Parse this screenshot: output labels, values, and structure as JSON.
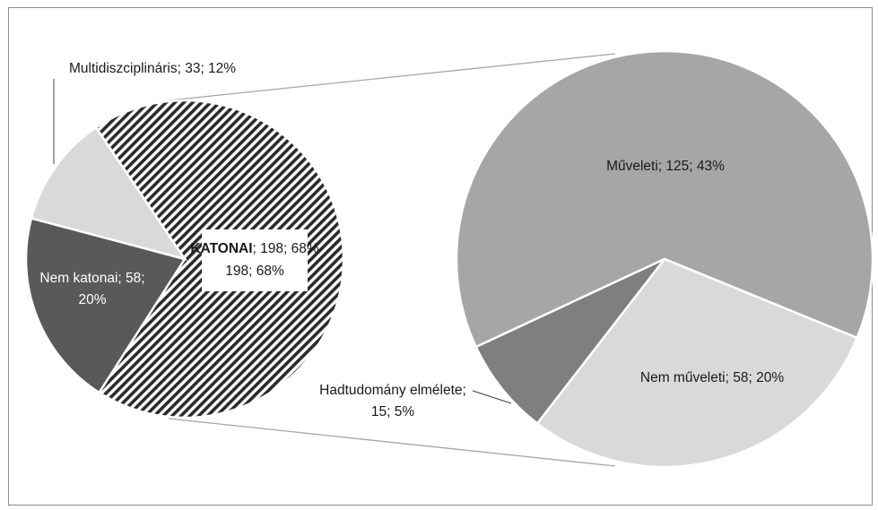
{
  "chart_data": [
    {
      "type": "pie",
      "slices": [
        {
          "label": "KATONAI",
          "value": 198,
          "percent": "68%",
          "color": "#2b2b2b",
          "pattern": "diagonal-stripes"
        },
        {
          "label": "Nem katonai",
          "value": 58,
          "percent": "20%",
          "color": "#595959"
        },
        {
          "label": "Multidiszciplináris",
          "value": 33,
          "percent": "12%",
          "color": "#d9d9d9"
        }
      ],
      "data_labels": {
        "KATONAI": {
          "name": "KATONAI",
          "rest": "; 198; 68%",
          "line2": "198; 68%"
        },
        "Nem katonai": {
          "line1": "Nem katonai; 58;",
          "line2": "20%"
        },
        "Multidiszciplináris": {
          "text": "Multidiszciplináris; 33; 12%"
        }
      }
    },
    {
      "type": "pie",
      "exploded_from": "KATONAI",
      "slices": [
        {
          "label": "Műveleti",
          "value": 125,
          "percent": "43%",
          "color": "#a6a6a6"
        },
        {
          "label": "Nem műveleti",
          "value": 58,
          "percent": "20%",
          "color": "#d9d9d9"
        },
        {
          "label": "Hadtudomány elmélete",
          "value": 15,
          "percent": "5%",
          "color": "#7f7f7f"
        }
      ],
      "data_labels": {
        "Műveleti": {
          "text": "Műveleti; 125; 43%"
        },
        "Nem műveleti": {
          "text": "Nem műveleti; 58; 20%"
        },
        "Hadtudomány elmélete": {
          "line1": "Hadtudomány elmélete;",
          "line2": "15; 5%"
        }
      }
    }
  ]
}
